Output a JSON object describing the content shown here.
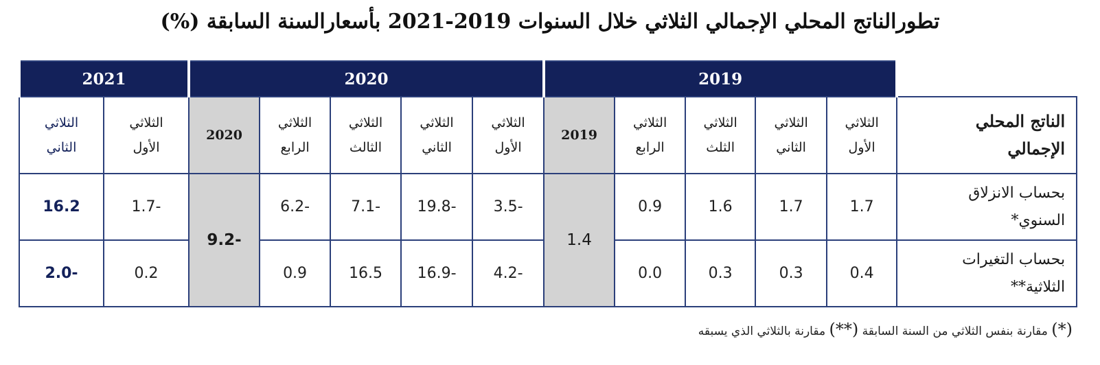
{
  "title": "تطورالناتج المحلي الإجمالي الثلاثي خلال السنوات 2019-2021 بأسعارالسنة السابقة (%)",
  "years": {
    "y2019": "2019",
    "y2020": "2020",
    "y2021": "2021"
  },
  "corner_label": [
    "الناتج المحلي",
    "الإجمالي"
  ],
  "quarter_headers": {
    "q2019_1": [
      "الثلاثي",
      "الأول"
    ],
    "q2019_2": [
      "الثلاثي",
      "الثاني"
    ],
    "q2019_3": [
      "الثلاثي",
      "الثلث"
    ],
    "q2019_4": [
      "الثلاثي",
      "الرابع"
    ],
    "annual_2019": "2019",
    "q2020_1": [
      "الثلاثي",
      "الأول"
    ],
    "q2020_2": [
      "الثلاثي",
      "الثاني"
    ],
    "q2020_3": [
      "الثلاثي",
      "الثالث"
    ],
    "q2020_4": [
      "الثلاثي",
      "الرابع"
    ],
    "annual_2020": "2020",
    "q2021_1": [
      "الثلاثي",
      "الأول"
    ],
    "q2021_2": [
      "الثلاثي",
      "الثاني"
    ]
  },
  "rows": [
    {
      "label": [
        "بحساب الانزلاق",
        "السنوي*"
      ],
      "values": {
        "q2019_1": "1.7",
        "q2019_2": "1.7",
        "q2019_3": "1.6",
        "q2019_4": "0.9",
        "q2020_1": "-3.5",
        "q2020_2": "-19.8",
        "q2020_3": "-7.1",
        "q2020_4": "-6.2",
        "q2021_1": "-1.7",
        "q2021_2": "16.2"
      }
    },
    {
      "label": [
        "بحساب التغيرات",
        "الثلاثية**"
      ],
      "values": {
        "q2019_1": "0.4",
        "q2019_2": "0.3",
        "q2019_3": "0.3",
        "q2019_4": "0.0",
        "q2020_1": "-4.2",
        "q2020_2": "-16.9",
        "q2020_3": "16.5",
        "q2020_4": "0.9",
        "q2021_1": "0.2",
        "q2021_2": "-2.0"
      }
    }
  ],
  "annual_values": {
    "a2019": "1.4",
    "a2020": "-9.2"
  },
  "notes": {
    "mark1": "(*)",
    "text1": "مقارنة بنفس الثلاثي من السنة السابقة",
    "mark2": "(**)",
    "text2": "مقارنة بالثلاثي الذي يسبقه"
  }
}
